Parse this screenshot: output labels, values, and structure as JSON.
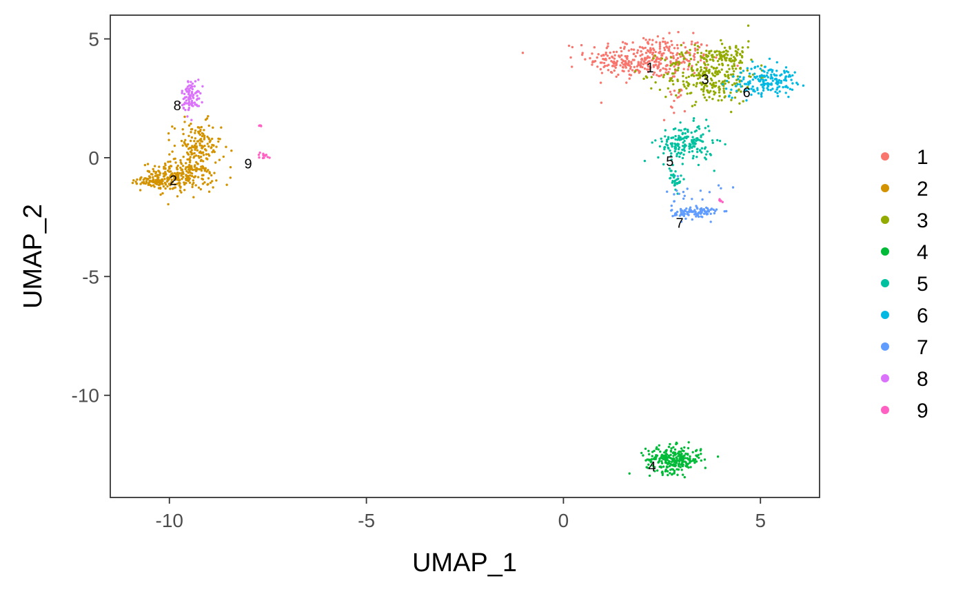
{
  "chart_data": {
    "type": "scatter",
    "xlabel": "UMAP_1",
    "ylabel": "UMAP_2",
    "xlim": [
      -11.5,
      6.5
    ],
    "ylim": [
      -14.3,
      6.0
    ],
    "x_ticks": [
      -10,
      -5,
      0,
      5
    ],
    "y_ticks": [
      5,
      0,
      -5,
      -10
    ],
    "x_tick_labels": [
      "-10",
      "-5",
      "0",
      "5"
    ],
    "y_tick_labels": [
      "5",
      "0",
      "-5",
      "-10"
    ],
    "grid": false,
    "legend_position": "right",
    "series": [
      {
        "name": "1",
        "color": "#F8766D",
        "label_at": [
          2.2,
          3.8
        ],
        "clusters": [
          {
            "cx": 2.2,
            "cy": 4.2,
            "sx": 0.8,
            "sy": 0.45,
            "n": 320
          },
          {
            "cx": 1.6,
            "cy": 3.9,
            "sx": 0.35,
            "sy": 0.15,
            "n": 40
          },
          {
            "cx": 2.8,
            "cy": 2.3,
            "sx": 0.15,
            "sy": 0.4,
            "n": 15
          }
        ]
      },
      {
        "name": "2",
        "color": "#D39200",
        "label_at": [
          -9.9,
          -0.95
        ],
        "clusters": [
          {
            "cx": -9.8,
            "cy": -0.8,
            "sx": 0.45,
            "sy": 0.3,
            "n": 260
          },
          {
            "cx": -9.3,
            "cy": 0.4,
            "sx": 0.3,
            "sy": 0.55,
            "n": 160
          },
          {
            "cx": -10.4,
            "cy": -1.05,
            "sx": 0.2,
            "sy": 0.1,
            "n": 40
          }
        ]
      },
      {
        "name": "3",
        "color": "#93AA00",
        "label_at": [
          3.6,
          3.3
        ],
        "clusters": [
          {
            "cx": 3.7,
            "cy": 3.5,
            "sx": 0.6,
            "sy": 0.6,
            "n": 300
          },
          {
            "cx": 4.2,
            "cy": 4.4,
            "sx": 0.35,
            "sy": 0.25,
            "n": 60
          }
        ]
      },
      {
        "name": "4",
        "color": "#00BA38",
        "label_at": [
          2.25,
          -13.0
        ],
        "clusters": [
          {
            "cx": 2.8,
            "cy": -12.7,
            "sx": 0.35,
            "sy": 0.28,
            "n": 260
          }
        ]
      },
      {
        "name": "5",
        "color": "#00C19F",
        "label_at": [
          2.7,
          -0.15
        ],
        "clusters": [
          {
            "cx": 3.1,
            "cy": 0.6,
            "sx": 0.35,
            "sy": 0.4,
            "n": 170
          },
          {
            "cx": 2.85,
            "cy": -0.9,
            "sx": 0.08,
            "sy": 0.25,
            "n": 30
          }
        ]
      },
      {
        "name": "6",
        "color": "#00B9E3",
        "label_at": [
          4.65,
          2.75
        ],
        "clusters": [
          {
            "cx": 5.2,
            "cy": 3.3,
            "sx": 0.35,
            "sy": 0.3,
            "n": 140
          },
          {
            "cx": 4.6,
            "cy": 3.0,
            "sx": 0.3,
            "sy": 0.25,
            "n": 30
          }
        ]
      },
      {
        "name": "7",
        "color": "#619CFF",
        "label_at": [
          2.95,
          -2.75
        ],
        "clusters": [
          {
            "cx": 3.35,
            "cy": -2.3,
            "sx": 0.3,
            "sy": 0.15,
            "n": 100
          },
          {
            "cx": 3.3,
            "cy": -1.6,
            "sx": 0.35,
            "sy": 0.3,
            "n": 20
          }
        ]
      },
      {
        "name": "8",
        "color": "#DB72FB",
        "label_at": [
          -9.8,
          2.2
        ],
        "clusters": [
          {
            "cx": -9.45,
            "cy": 2.6,
            "sx": 0.12,
            "sy": 0.35,
            "n": 90
          }
        ]
      },
      {
        "name": "9",
        "color": "#FF61C3",
        "label_at": [
          -8.0,
          -0.25
        ],
        "clusters": [
          {
            "cx": -7.6,
            "cy": 0.1,
            "sx": 0.08,
            "sy": 0.06,
            "n": 14
          },
          {
            "cx": -7.7,
            "cy": 1.35,
            "sx": 0.03,
            "sy": 0.02,
            "n": 4
          },
          {
            "cx": 4.0,
            "cy": -1.8,
            "sx": 0.05,
            "sy": 0.04,
            "n": 5
          }
        ]
      }
    ]
  }
}
